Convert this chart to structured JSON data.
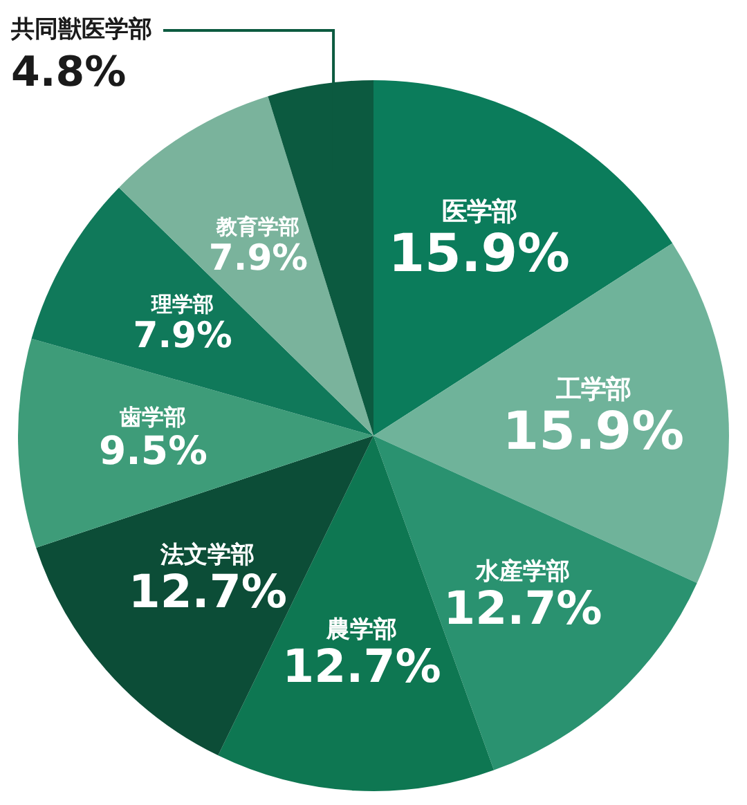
{
  "chart_data": {
    "type": "pie",
    "categories": [
      "医学部",
      "工学部",
      "水産学部",
      "農学部",
      "法文学部",
      "歯学部",
      "理学部",
      "教育学部",
      "共同獣医学部"
    ],
    "values": [
      15.9,
      15.9,
      12.7,
      12.7,
      12.7,
      9.5,
      7.9,
      7.9,
      4.8
    ],
    "value_labels": [
      "15.9%",
      "15.9%",
      "12.7%",
      "12.7%",
      "12.7%",
      "9.5%",
      "7.9%",
      "7.9%",
      "4.8%"
    ],
    "colors": [
      "#0b7c5b",
      "#6fb39a",
      "#2a9270",
      "#0e7752",
      "#0c4d37",
      "#3e9c79",
      "#10795a",
      "#7ab39c",
      "#0c5a40"
    ],
    "legend": false
  }
}
